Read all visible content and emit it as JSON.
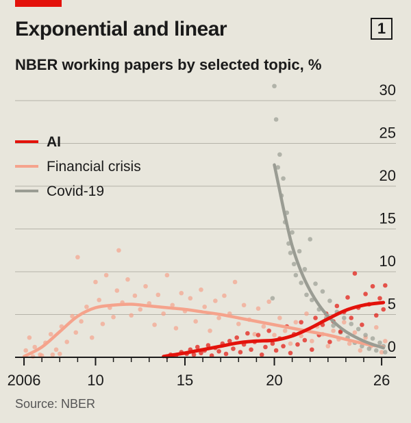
{
  "header": {
    "title": "Exponential and linear",
    "subtitle": "NBER working papers by selected topic, %",
    "badge": "1"
  },
  "footer": {
    "source": "Source: NBER"
  },
  "colors": {
    "accent": "#e3120b",
    "ai": "#e3120b",
    "financial": "#f5a38c",
    "covid": "#9a9c93",
    "axis": "#1a1a1a",
    "grid": "#b5b3a9"
  },
  "chart_data": {
    "type": "scatter",
    "xlim": [
      2005.5,
      2026.8
    ],
    "ylim": [
      0,
      30
    ],
    "y_ticks": [
      {
        "value": 0,
        "label": "0"
      },
      {
        "value": 5,
        "label": "5"
      },
      {
        "value": 10,
        "label": "10"
      },
      {
        "value": 15,
        "label": "15"
      },
      {
        "value": 20,
        "label": "20"
      },
      {
        "value": 25,
        "label": "25"
      },
      {
        "value": 30,
        "label": "30"
      }
    ],
    "x_ticks": [
      {
        "value": 2006,
        "label": "2006"
      },
      {
        "value": 2010,
        "label": "10"
      },
      {
        "value": 2015,
        "label": "15"
      },
      {
        "value": 2020,
        "label": "20"
      },
      {
        "value": 2026,
        "label": "26"
      }
    ],
    "grid": true,
    "legend_position": "top-left",
    "series": [
      {
        "key": "ai",
        "name": "AI",
        "trend": [
          [
            2013.8,
            0.1
          ],
          [
            2015,
            0.5
          ],
          [
            2016,
            0.9
          ],
          [
            2017,
            1.3
          ],
          [
            2018,
            1.7
          ],
          [
            2019,
            1.9
          ],
          [
            2020,
            2.0
          ],
          [
            2021,
            2.5
          ],
          [
            2022,
            3.4
          ],
          [
            2023,
            4.5
          ],
          [
            2024,
            5.5
          ],
          [
            2025,
            6.1
          ],
          [
            2026.1,
            6.4
          ]
        ],
        "points": [
          [
            2014.0,
            0.1
          ],
          [
            2014.2,
            0.3
          ],
          [
            2014.5,
            0.2
          ],
          [
            2014.8,
            0.6
          ],
          [
            2015.1,
            0.4
          ],
          [
            2015.3,
            0.9
          ],
          [
            2015.5,
            0.3
          ],
          [
            2015.7,
            1.2
          ],
          [
            2015.9,
            0.5
          ],
          [
            2016.1,
            0.8
          ],
          [
            2016.3,
            1.4
          ],
          [
            2016.5,
            0.2
          ],
          [
            2016.7,
            1.1
          ],
          [
            2016.9,
            0.7
          ],
          [
            2017.1,
            1.6
          ],
          [
            2017.3,
            0.4
          ],
          [
            2017.5,
            1.9
          ],
          [
            2017.7,
            1.0
          ],
          [
            2017.9,
            2.3
          ],
          [
            2018.1,
            0.6
          ],
          [
            2018.3,
            1.5
          ],
          [
            2018.5,
            2.8
          ],
          [
            2018.7,
            0.9
          ],
          [
            2018.9,
            1.8
          ],
          [
            2019.1,
            2.6
          ],
          [
            2019.3,
            0.3
          ],
          [
            2019.5,
            1.2
          ],
          [
            2019.7,
            3.1
          ],
          [
            2019.9,
            1.6
          ],
          [
            2020.1,
            0.8
          ],
          [
            2020.3,
            2.2
          ],
          [
            2020.5,
            1.3
          ],
          [
            2020.7,
            3.6
          ],
          [
            2020.9,
            0.5
          ],
          [
            2021.1,
            2.7
          ],
          [
            2021.3,
            1.5
          ],
          [
            2021.5,
            4.1
          ],
          [
            2021.7,
            2.0
          ],
          [
            2021.9,
            3.2
          ],
          [
            2022.1,
            0.9
          ],
          [
            2022.3,
            4.6
          ],
          [
            2022.5,
            2.6
          ],
          [
            2022.7,
            3.8
          ],
          [
            2022.9,
            5.1
          ],
          [
            2023.1,
            1.8
          ],
          [
            2023.3,
            4.2
          ],
          [
            2023.5,
            6.0
          ],
          [
            2023.7,
            3.0
          ],
          [
            2023.9,
            5.3
          ],
          [
            2024.1,
            7.0
          ],
          [
            2024.3,
            4.6
          ],
          [
            2024.5,
            9.8
          ],
          [
            2024.7,
            5.8
          ],
          [
            2024.9,
            3.8
          ],
          [
            2025.1,
            7.4
          ],
          [
            2025.3,
            6.2
          ],
          [
            2025.5,
            8.3
          ],
          [
            2025.7,
            4.9
          ],
          [
            2025.9,
            6.9
          ],
          [
            2026.1,
            5.6
          ],
          [
            2026.2,
            8.4
          ]
        ]
      },
      {
        "key": "financial",
        "name": "Financial crisis",
        "trend": [
          [
            2006,
            0.1
          ],
          [
            2007,
            1.2
          ],
          [
            2008,
            3.0
          ],
          [
            2009,
            4.8
          ],
          [
            2010,
            5.8
          ],
          [
            2011,
            6.1
          ],
          [
            2012,
            6.2
          ],
          [
            2013,
            6.0
          ],
          [
            2014,
            5.8
          ],
          [
            2015,
            5.6
          ],
          [
            2016,
            5.3
          ],
          [
            2017,
            5.0
          ],
          [
            2018,
            4.6
          ],
          [
            2019,
            4.2
          ],
          [
            2020,
            3.8
          ],
          [
            2021,
            3.4
          ],
          [
            2022,
            3.0
          ],
          [
            2023,
            2.6
          ],
          [
            2024,
            2.1
          ],
          [
            2025,
            1.6
          ],
          [
            2026.1,
            1.2
          ]
        ],
        "points": [
          [
            2006.1,
            0.8
          ],
          [
            2006.3,
            2.3
          ],
          [
            2006.6,
            1.2
          ],
          [
            2006.9,
            0.3
          ],
          [
            2007.2,
            1.7
          ],
          [
            2007.5,
            2.7
          ],
          [
            2007.8,
            0.9
          ],
          [
            2008.1,
            3.6
          ],
          [
            2008.4,
            1.8
          ],
          [
            2008.7,
            4.8
          ],
          [
            2008.9,
            2.9
          ],
          [
            2009.0,
            11.7
          ],
          [
            2009.2,
            4.2
          ],
          [
            2009.5,
            5.9
          ],
          [
            2009.8,
            2.3
          ],
          [
            2010.0,
            8.8
          ],
          [
            2010.2,
            6.7
          ],
          [
            2010.4,
            3.9
          ],
          [
            2010.6,
            9.6
          ],
          [
            2010.8,
            5.8
          ],
          [
            2011.0,
            4.7
          ],
          [
            2011.2,
            7.8
          ],
          [
            2011.3,
            12.5
          ],
          [
            2011.5,
            6.4
          ],
          [
            2011.8,
            9.1
          ],
          [
            2012.0,
            4.9
          ],
          [
            2012.2,
            7.2
          ],
          [
            2012.5,
            5.6
          ],
          [
            2012.8,
            8.3
          ],
          [
            2013.0,
            6.3
          ],
          [
            2013.3,
            3.8
          ],
          [
            2013.5,
            7.3
          ],
          [
            2013.8,
            5.1
          ],
          [
            2014.0,
            9.6
          ],
          [
            2014.3,
            6.1
          ],
          [
            2014.5,
            3.4
          ],
          [
            2014.8,
            7.5
          ],
          [
            2015.0,
            5.4
          ],
          [
            2015.3,
            6.9
          ],
          [
            2015.6,
            4.2
          ],
          [
            2015.9,
            7.9
          ],
          [
            2016.1,
            5.9
          ],
          [
            2016.4,
            3.1
          ],
          [
            2016.7,
            6.6
          ],
          [
            2016.9,
            4.6
          ],
          [
            2017.2,
            7.2
          ],
          [
            2017.5,
            5.1
          ],
          [
            2017.8,
            8.8
          ],
          [
            2018.0,
            3.9
          ],
          [
            2018.3,
            6.1
          ],
          [
            2018.6,
            4.4
          ],
          [
            2018.9,
            2.7
          ],
          [
            2019.1,
            5.7
          ],
          [
            2019.4,
            3.6
          ],
          [
            2019.7,
            6.5
          ],
          [
            2020.0,
            2.6
          ],
          [
            2020.3,
            4.6
          ],
          [
            2020.6,
            3.1
          ],
          [
            2020.9,
            1.6
          ],
          [
            2021.2,
            4.1
          ],
          [
            2021.5,
            2.5
          ],
          [
            2021.8,
            5.1
          ],
          [
            2022.1,
            1.9
          ],
          [
            2022.4,
            3.6
          ],
          [
            2022.7,
            2.7
          ],
          [
            2023.0,
            1.3
          ],
          [
            2023.3,
            3.1
          ],
          [
            2023.6,
            2.1
          ],
          [
            2023.9,
            4.1
          ],
          [
            2024.2,
            1.6
          ],
          [
            2024.5,
            2.9
          ],
          [
            2024.8,
            0.8
          ],
          [
            2025.1,
            2.3
          ],
          [
            2025.4,
            1.3
          ],
          [
            2025.7,
            3.5
          ],
          [
            2026.0,
            0.6
          ],
          [
            2026.2,
            1.9
          ],
          [
            2007.0,
            0.2
          ],
          [
            2008.0,
            0.4
          ],
          [
            2006.5,
            0.1
          ],
          [
            2007.6,
            0.3
          ]
        ]
      },
      {
        "key": "covid",
        "name": "Covid-19",
        "trend": [
          [
            2020.0,
            22.5
          ],
          [
            2020.3,
            19.5
          ],
          [
            2020.6,
            16.5
          ],
          [
            2021.0,
            13.0
          ],
          [
            2021.5,
            10.0
          ],
          [
            2022.0,
            7.8
          ],
          [
            2022.5,
            6.1
          ],
          [
            2023.0,
            4.8
          ],
          [
            2023.5,
            3.8
          ],
          [
            2024.0,
            3.0
          ],
          [
            2024.5,
            2.4
          ],
          [
            2025.0,
            1.9
          ],
          [
            2025.5,
            1.5
          ],
          [
            2026.1,
            1.1
          ]
        ],
        "points": [
          [
            2019.9,
            6.9
          ],
          [
            2020.0,
            31.7
          ],
          [
            2020.1,
            27.8
          ],
          [
            2020.2,
            22.2
          ],
          [
            2020.3,
            23.7
          ],
          [
            2020.4,
            18.9
          ],
          [
            2020.5,
            20.9
          ],
          [
            2020.6,
            15.8
          ],
          [
            2020.7,
            16.9
          ],
          [
            2020.8,
            13.3
          ],
          [
            2020.9,
            12.2
          ],
          [
            2021.0,
            14.6
          ],
          [
            2021.1,
            10.9
          ],
          [
            2021.2,
            9.6
          ],
          [
            2021.4,
            12.4
          ],
          [
            2021.5,
            8.7
          ],
          [
            2021.7,
            10.3
          ],
          [
            2021.8,
            7.3
          ],
          [
            2022.0,
            13.8
          ],
          [
            2022.1,
            6.7
          ],
          [
            2022.3,
            8.6
          ],
          [
            2022.5,
            5.6
          ],
          [
            2022.7,
            7.7
          ],
          [
            2022.9,
            4.6
          ],
          [
            2023.1,
            6.6
          ],
          [
            2023.3,
            3.7
          ],
          [
            2023.5,
            5.3
          ],
          [
            2023.7,
            2.9
          ],
          [
            2023.9,
            4.6
          ],
          [
            2024.1,
            2.3
          ],
          [
            2024.3,
            3.9
          ],
          [
            2024.5,
            1.7
          ],
          [
            2024.7,
            3.3
          ],
          [
            2024.9,
            1.3
          ],
          [
            2025.1,
            2.6
          ],
          [
            2025.3,
            1.0
          ],
          [
            2025.5,
            2.2
          ],
          [
            2025.7,
            0.8
          ],
          [
            2025.9,
            1.7
          ],
          [
            2026.1,
            1.3
          ],
          [
            2026.2,
            0.6
          ]
        ]
      }
    ]
  }
}
